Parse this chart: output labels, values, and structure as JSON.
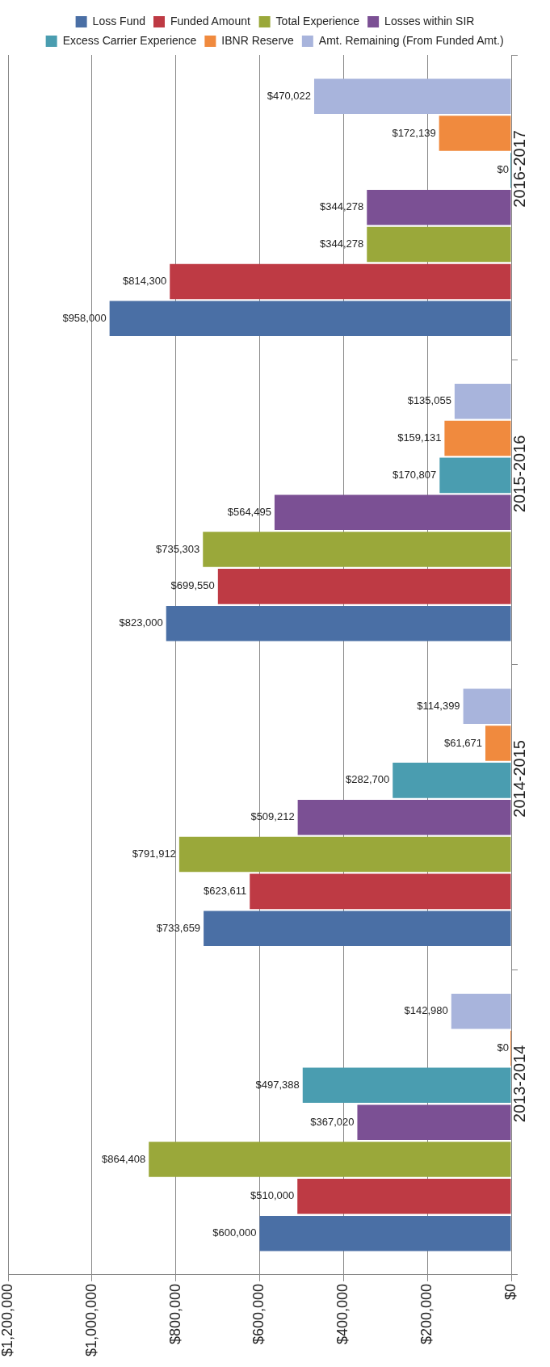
{
  "chart_data": {
    "type": "bar",
    "orientation": "horizontal",
    "categories": [
      "2016-2017",
      "2015-2016",
      "2014-2015",
      "2013-2014"
    ],
    "series": [
      {
        "name": "Loss Fund",
        "color": "#4a6fa5",
        "values": [
          958000,
          823000,
          733659,
          600000
        ],
        "value_labels": [
          "$958,000",
          "$823,000",
          "$733,659",
          "$600,000"
        ]
      },
      {
        "name": "Funded Amount",
        "color": "#be3a44",
        "values": [
          814300,
          699550,
          623611,
          510000
        ],
        "value_labels": [
          "$814,300",
          "$699,550",
          "$623,611",
          "$510,000"
        ]
      },
      {
        "name": "Total Experience",
        "color": "#9aa83a",
        "values": [
          344278,
          735303,
          791912,
          864408
        ],
        "value_labels": [
          "$344,278",
          "$735,303",
          "$791,912",
          "$864,408"
        ]
      },
      {
        "name": "Losses within SIR",
        "color": "#7b5094",
        "values": [
          344278,
          564495,
          509212,
          367020
        ],
        "value_labels": [
          "$344,278",
          "$564,495",
          "$509,212",
          "$367,020"
        ]
      },
      {
        "name": "Excess Carrier Experience",
        "color": "#4a9db0",
        "values": [
          0,
          170807,
          282700,
          497388
        ],
        "value_labels": [
          "$0",
          "$170,807",
          "$282,700",
          "$497,388"
        ]
      },
      {
        "name": "IBNR Reserve",
        "color": "#f08a3e",
        "values": [
          172139,
          159131,
          61671,
          0
        ],
        "value_labels": [
          "$172,139",
          "$159,131",
          "$61,671",
          "$0"
        ]
      },
      {
        "name": "Amt. Remaining (From Funded Amt.)",
        "color": "#a8b4dc",
        "values": [
          470022,
          135055,
          114399,
          142980
        ],
        "value_labels": [
          "$470,022",
          "$135,055",
          "$114,399",
          "$142,980"
        ]
      }
    ],
    "xlim": [
      1200000,
      0
    ],
    "xticks": [
      {
        "value": 1200000,
        "label": "$1,200,000"
      },
      {
        "value": 1000000,
        "label": "$1,000,000"
      },
      {
        "value": 800000,
        "label": "$800,000"
      },
      {
        "value": 600000,
        "label": "$600,000"
      },
      {
        "value": 400000,
        "label": "$400,000"
      },
      {
        "value": 200000,
        "label": "$200,000"
      },
      {
        "value": 0,
        "label": "$0"
      }
    ],
    "grid": "x",
    "legend": "top"
  }
}
